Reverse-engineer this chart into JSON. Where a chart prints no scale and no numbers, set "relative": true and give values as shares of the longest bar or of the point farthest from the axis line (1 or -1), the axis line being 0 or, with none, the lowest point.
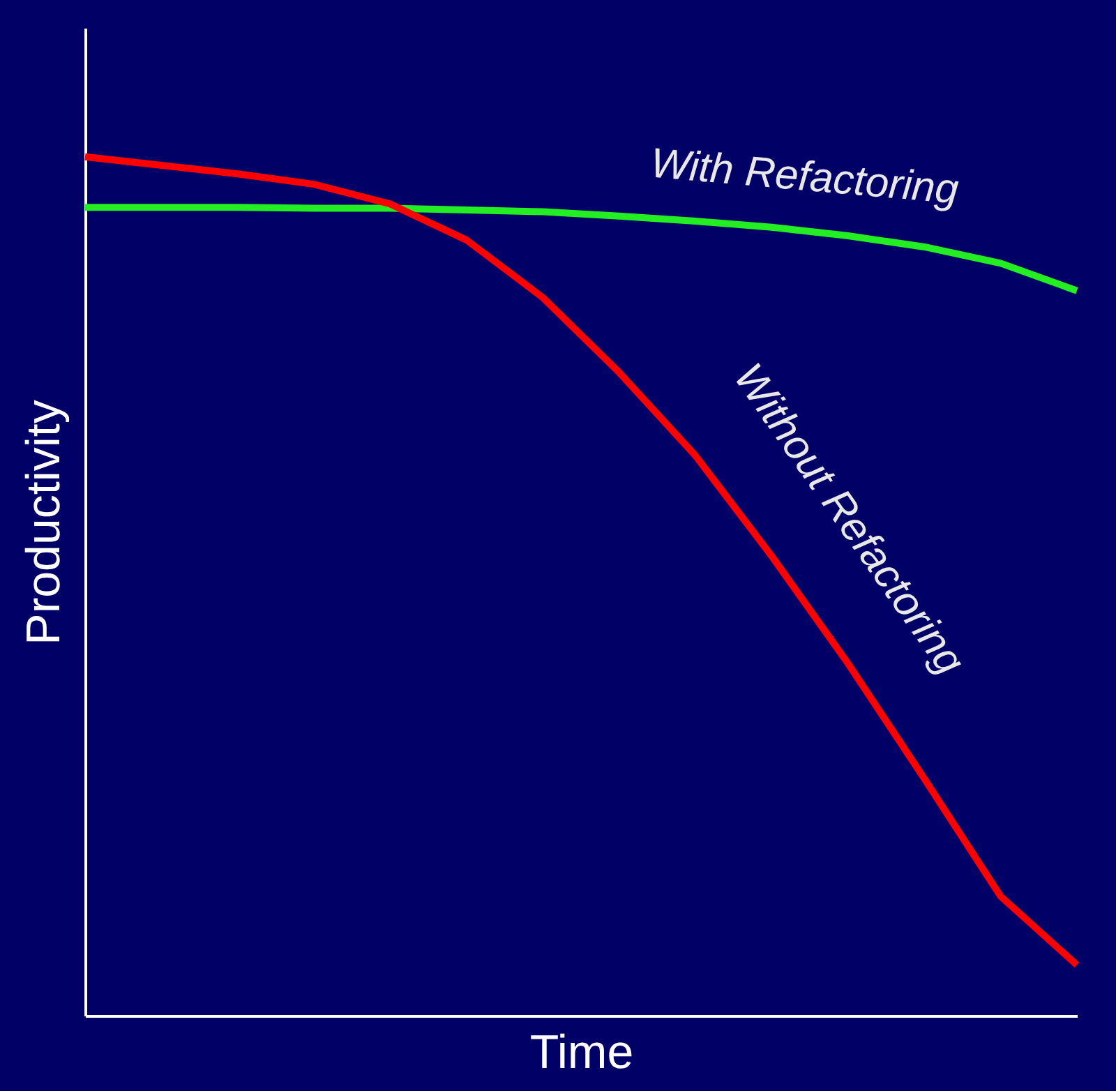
{
  "chart_data": {
    "type": "line",
    "relative": true,
    "xlabel": "Time",
    "ylabel": "Productivity",
    "grid": false,
    "marker": "none",
    "line_style": "solid",
    "categories": [
      null,
      null,
      null,
      null,
      null,
      null,
      null,
      null,
      null,
      null,
      null,
      null,
      null,
      null
    ],
    "series": [
      {
        "name": "With Refactoring",
        "color": "#22ee22",
        "values": [
          0.941,
          0.941,
          0.941,
          0.94,
          0.94,
          0.938,
          0.936,
          0.931,
          0.925,
          0.918,
          0.908,
          0.895,
          0.876,
          0.844
        ]
      },
      {
        "name": "Without Refactoring",
        "color": "#ff0000",
        "values": [
          1.0,
          0.99,
          0.98,
          0.968,
          0.945,
          0.903,
          0.836,
          0.749,
          0.652,
          0.535,
          0.41,
          0.276,
          0.139,
          0.059
        ]
      }
    ]
  }
}
